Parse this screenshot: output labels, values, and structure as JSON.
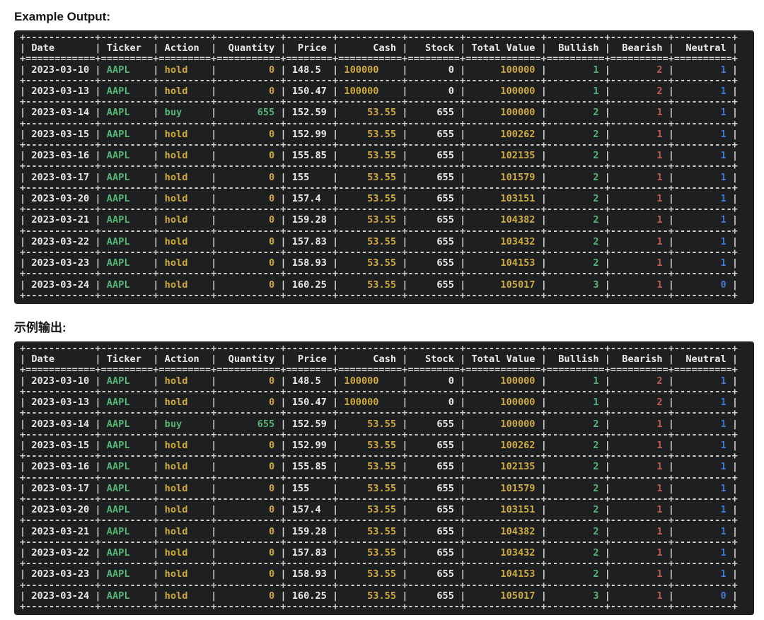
{
  "sections": [
    {
      "heading": "Example Output:"
    },
    {
      "heading": "示例输出:"
    }
  ],
  "table": {
    "columns": [
      {
        "label": "Date",
        "align": "left",
        "header_align": "left",
        "field": 10,
        "color": "white"
      },
      {
        "label": "Ticker",
        "align": "left",
        "header_align": "left",
        "field": 7,
        "color": "green"
      },
      {
        "label": "Action",
        "align": "left",
        "header_align": "left",
        "field": 7,
        "color": "yellow"
      },
      {
        "label": "Quantity",
        "align": "right",
        "header_align": "right",
        "field": 9,
        "color": "yellow"
      },
      {
        "label": "Price",
        "align": "dec",
        "header_align": "right",
        "field": 6,
        "intw": 3,
        "color": "white"
      },
      {
        "label": "Cash",
        "align": "dec",
        "header_align": "right",
        "field": 9,
        "intw": 6,
        "color": "yellow"
      },
      {
        "label": "Stock",
        "align": "right",
        "header_align": "right",
        "field": 7,
        "color": "white"
      },
      {
        "label": "Total Value",
        "align": "right",
        "header_align": "left",
        "field": 11,
        "color": "yellow"
      },
      {
        "label": "Bullish",
        "align": "right",
        "header_align": "right",
        "field": 8,
        "color": "green"
      },
      {
        "label": "Bearish",
        "align": "right",
        "header_align": "right",
        "field": 8,
        "color": "red"
      },
      {
        "label": "Neutral",
        "align": "right",
        "header_align": "right",
        "field": 8,
        "color": "blue"
      }
    ],
    "rows": [
      [
        "2023-03-10",
        "AAPL",
        "hold",
        "0",
        "148.5",
        "100000",
        "0",
        "100000",
        "1",
        "2",
        "1"
      ],
      [
        "2023-03-13",
        "AAPL",
        "hold",
        "0",
        "150.47",
        "100000",
        "0",
        "100000",
        "1",
        "2",
        "1"
      ],
      [
        "2023-03-14",
        "AAPL",
        "buy",
        "655",
        "152.59",
        "53.55",
        "655",
        "100000",
        "2",
        "1",
        "1"
      ],
      [
        "2023-03-15",
        "AAPL",
        "hold",
        "0",
        "152.99",
        "53.55",
        "655",
        "100262",
        "2",
        "1",
        "1"
      ],
      [
        "2023-03-16",
        "AAPL",
        "hold",
        "0",
        "155.85",
        "53.55",
        "655",
        "102135",
        "2",
        "1",
        "1"
      ],
      [
        "2023-03-17",
        "AAPL",
        "hold",
        "0",
        "155",
        "53.55",
        "655",
        "101579",
        "2",
        "1",
        "1"
      ],
      [
        "2023-03-20",
        "AAPL",
        "hold",
        "0",
        "157.4",
        "53.55",
        "655",
        "103151",
        "2",
        "1",
        "1"
      ],
      [
        "2023-03-21",
        "AAPL",
        "hold",
        "0",
        "159.28",
        "53.55",
        "655",
        "104382",
        "2",
        "1",
        "1"
      ],
      [
        "2023-03-22",
        "AAPL",
        "hold",
        "0",
        "157.83",
        "53.55",
        "655",
        "103432",
        "2",
        "1",
        "1"
      ],
      [
        "2023-03-23",
        "AAPL",
        "hold",
        "0",
        "158.93",
        "53.55",
        "655",
        "104153",
        "2",
        "1",
        "1"
      ],
      [
        "2023-03-24",
        "AAPL",
        "hold",
        "0",
        "160.25",
        "53.55",
        "655",
        "105017",
        "3",
        "1",
        "0"
      ]
    ],
    "overrides": [
      {
        "row": 2,
        "col": 2,
        "color": "green"
      },
      {
        "row": 2,
        "col": 3,
        "color": "green"
      }
    ]
  },
  "palette": {
    "white": "#e9e9e6",
    "green": "#55b476",
    "yellow": "#cfab3d",
    "red": "#c05b52",
    "blue": "#4079cf",
    "border": "#d4d4d2",
    "header": "#e9e9e6",
    "panel_bg": "#1d1f20",
    "page_bg": "#ffffff"
  }
}
